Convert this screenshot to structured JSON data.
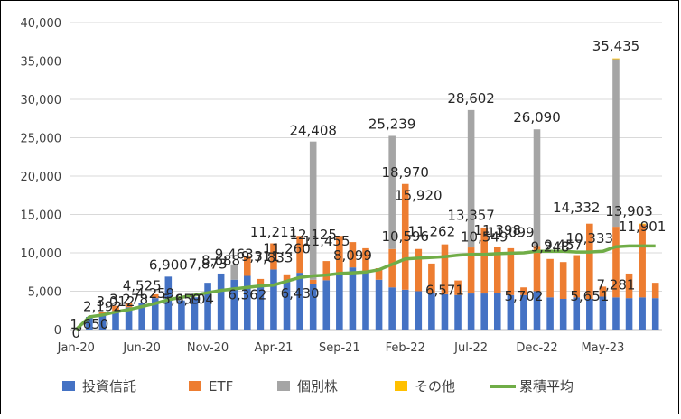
{
  "chart_data": {
    "type": "bar",
    "stacked": true,
    "x_tick_labels": [
      "Jan-20",
      "Jun-20",
      "Nov-20",
      "Apr-21",
      "Sep-21",
      "Feb-22",
      "Jul-22",
      "Dec-22",
      "May-23"
    ],
    "categories": [
      "Jan-20",
      "Feb-20",
      "Mar-20",
      "Apr-20",
      "May-20",
      "Jun-20",
      "Jul-20",
      "Aug-20",
      "Sep-20",
      "Oct-20",
      "Nov-20",
      "Dec-20",
      "Jan-21",
      "Feb-21",
      "Mar-21",
      "Apr-21",
      "May-21",
      "Jun-21",
      "Jul-21",
      "Aug-21",
      "Sep-21",
      "Oct-21",
      "Nov-21",
      "Dec-21",
      "Jan-22",
      "Feb-22",
      "Mar-22",
      "Apr-22",
      "May-22",
      "Jun-22",
      "Jul-22",
      "Aug-22",
      "Sep-22",
      "Oct-22",
      "Nov-22",
      "Dec-22",
      "Jan-23",
      "Feb-23",
      "Mar-23",
      "Apr-23",
      "May-23",
      "Jun-23",
      "Jul-23",
      "Aug-23",
      "Sep-23"
    ],
    "series": [
      {
        "name": "投資信託",
        "color": "#4472C4",
        "values": [
          0,
          1650,
          2000,
          2400,
          2900,
          3500,
          4100,
          6900,
          3800,
          4200,
          6100,
          7300,
          6500,
          7000,
          5900,
          7833,
          6400,
          7400,
          6000,
          6430,
          7400,
          8099,
          7600,
          6500,
          5500,
          5200,
          5000,
          4800,
          4600,
          4500,
          4700,
          4700,
          4800,
          4500,
          4500,
          5000,
          4200,
          4000,
          4200,
          4000,
          4300,
          4200,
          4100,
          4200,
          4100
        ]
      },
      {
        "name": "ETF",
        "color": "#ED7D31",
        "values": [
          0,
          0,
          300,
          700,
          600,
          0,
          500,
          0,
          0,
          0,
          0,
          0,
          0,
          2500,
          700,
          3400,
          800,
          4800,
          500,
          2500,
          4800,
          3300,
          3000,
          1500,
          5000,
          13770,
          5500,
          3800,
          6500,
          1900,
          6000,
          8600,
          6000,
          6100,
          1000,
          5900,
          5000,
          4800,
          5500,
          9800,
          1300,
          9200,
          3200,
          9500,
          2000
        ]
      },
      {
        "name": "個別株",
        "color": "#A5A5A5",
        "values": [
          0,
          0,
          0,
          0,
          0,
          0,
          0,
          0,
          0,
          0,
          0,
          0,
          2000,
          0,
          0,
          0,
          0,
          0,
          18008,
          0,
          0,
          0,
          0,
          0,
          14739,
          0,
          0,
          0,
          0,
          0,
          17902,
          0,
          0,
          0,
          0,
          15190,
          0,
          0,
          0,
          0,
          0,
          21835,
          0,
          0,
          0
        ]
      },
      {
        "name": "その他",
        "color": "#FFC000",
        "values": [
          0,
          0,
          0,
          0,
          0,
          0,
          0,
          0,
          0,
          0,
          0,
          0,
          0,
          0,
          0,
          0,
          0,
          0,
          0,
          0,
          0,
          0,
          0,
          0,
          0,
          0,
          0,
          0,
          0,
          0,
          0,
          0,
          0,
          0,
          0,
          0,
          0,
          0,
          0,
          0,
          0,
          100,
          0,
          100,
          0
        ]
      }
    ],
    "line": {
      "name": "累積平均",
      "color": "#70AD47",
      "values": [
        0,
        1650,
        1900,
        2300,
        2600,
        3000,
        3400,
        3900,
        4200,
        4500,
        4800,
        5100,
        5300,
        5500,
        5700,
        5800,
        6300,
        6800,
        7000,
        7100,
        7300,
        7400,
        7500,
        7800,
        8500,
        9200,
        9300,
        9400,
        9500,
        9700,
        9800,
        9800,
        9900,
        9950,
        10000,
        10200,
        10200,
        10200,
        10100,
        10100,
        10200,
        10800,
        10900,
        10900,
        10900
      ]
    },
    "annotations": [
      "1,650",
      "2,192",
      "3,012",
      "3,278",
      "4,525",
      "4,259",
      "6,900",
      "5,959",
      "6,104",
      "7,873",
      "8,688",
      "9,463",
      "6,362",
      "9,311",
      "11,211",
      "7,833",
      "11,260",
      "6,430",
      "12,125",
      "11,455",
      "8,099",
      "24,408",
      "25,239",
      "18,970",
      "15,920",
      "10,596",
      "11,262",
      "6,571",
      "13,357",
      "28,602",
      "10,549",
      "11,398",
      "11,099",
      "5,702",
      "26,090",
      "9,248",
      "9,457",
      "14,332",
      "10,333",
      "5,651",
      "7,281",
      "35,435",
      "13,903",
      "11,901",
      "0"
    ],
    "ylim": [
      0,
      40000
    ],
    "y_ticks": [
      "0",
      "5,000",
      "10,000",
      "15,000",
      "20,000",
      "25,000",
      "30,000",
      "35,000",
      "40,000"
    ],
    "grid": true,
    "legend_position": "bottom"
  }
}
